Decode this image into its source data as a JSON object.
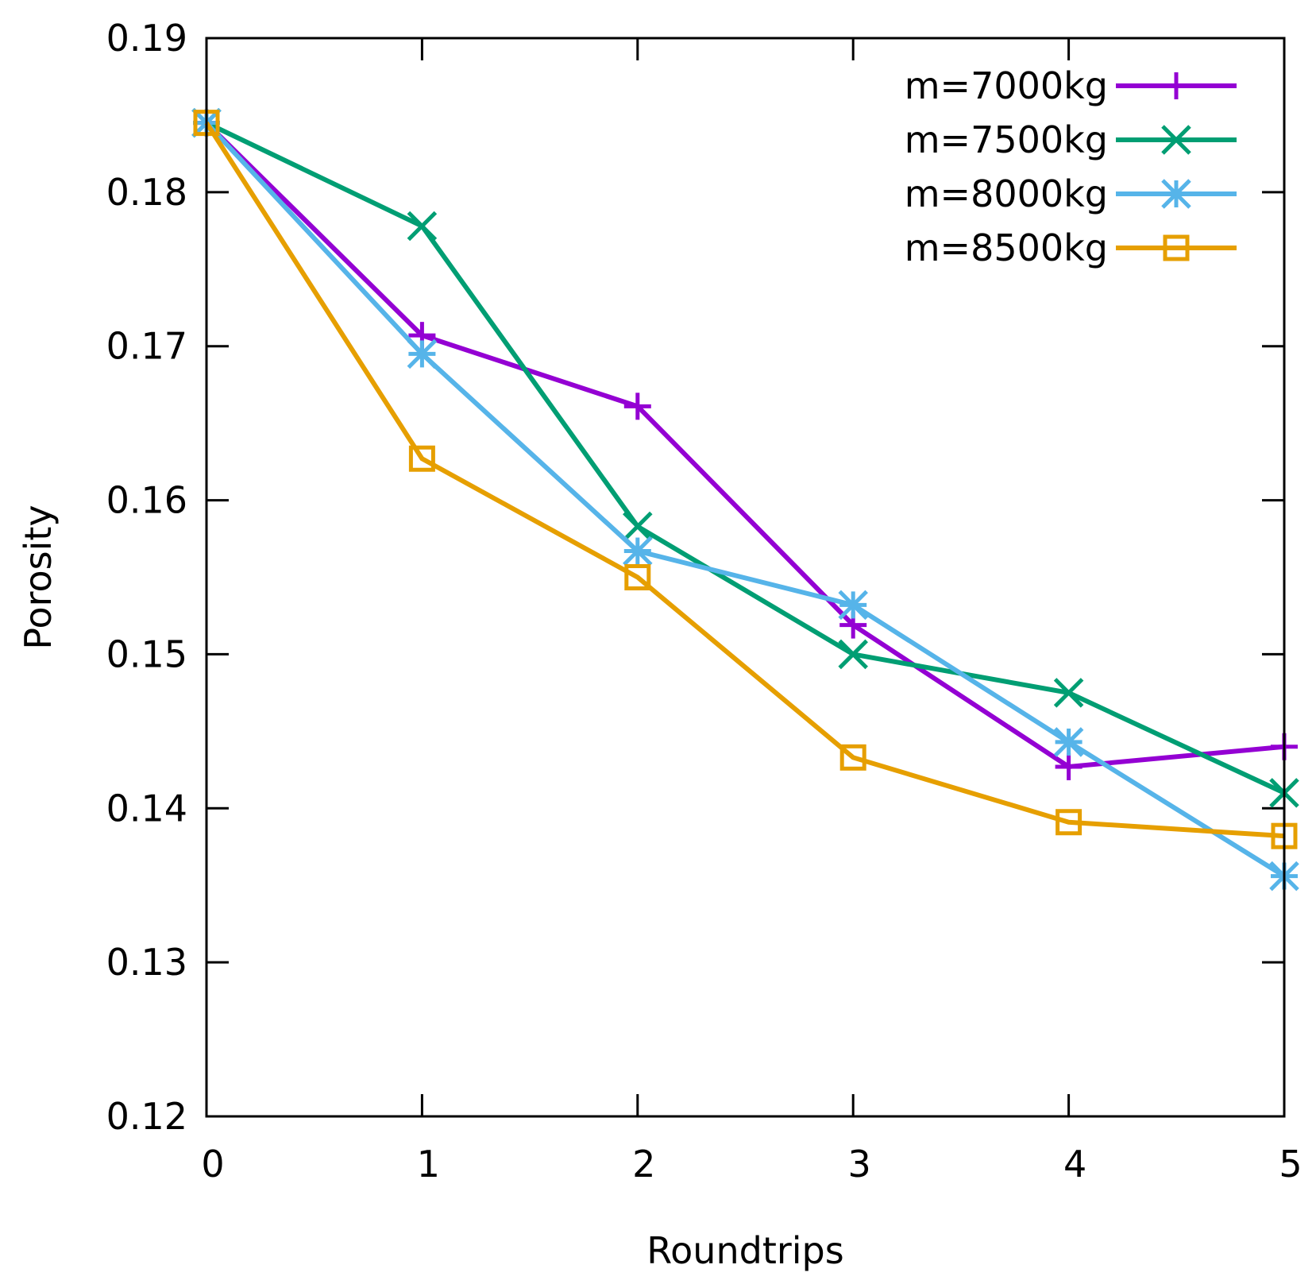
{
  "chart_data": {
    "type": "line",
    "title": "",
    "xlabel": "Roundtrips",
    "ylabel": "Porosity",
    "xlim": [
      0,
      5
    ],
    "ylim": [
      0.12,
      0.19
    ],
    "xticks": [
      0,
      1,
      2,
      3,
      4,
      5
    ],
    "xtick_labels": [
      "0",
      "1",
      "2",
      "3",
      "4",
      "5"
    ],
    "yticks": [
      0.12,
      0.13,
      0.14,
      0.15,
      0.16,
      0.17,
      0.18,
      0.19
    ],
    "ytick_labels": [
      "0.12",
      "0.13",
      "0.14",
      "0.15",
      "0.16",
      "0.17",
      "0.18",
      "0.19"
    ],
    "grid": false,
    "legend_position": "top-right",
    "x": [
      0,
      1,
      2,
      3,
      4,
      5
    ],
    "series": [
      {
        "name": "m=7000kg",
        "color": "#9400d3",
        "marker": "plus",
        "values": [
          0.1845,
          0.1707,
          0.1661,
          0.1519,
          0.1427,
          0.144
        ]
      },
      {
        "name": "m=7500kg",
        "color": "#009e73",
        "marker": "cross",
        "values": [
          0.1845,
          0.1778,
          0.1583,
          0.15,
          0.1475,
          0.141
        ]
      },
      {
        "name": "m=8000kg",
        "color": "#56b4e9",
        "marker": "star",
        "values": [
          0.1845,
          0.1695,
          0.1567,
          0.1532,
          0.1443,
          0.1356
        ]
      },
      {
        "name": "m=8500kg",
        "color": "#e69f00",
        "marker": "square",
        "values": [
          0.1845,
          0.1627,
          0.155,
          0.1433,
          0.1391,
          0.1382
        ]
      }
    ]
  }
}
